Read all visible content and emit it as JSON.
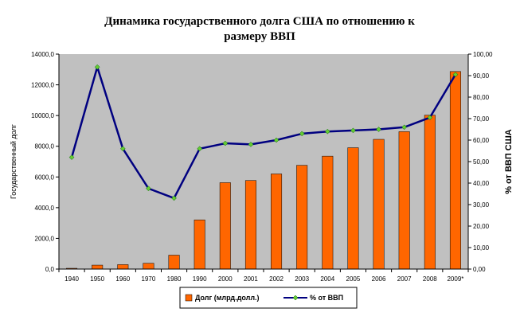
{
  "chart_data": {
    "type": "bar+line",
    "title_line1": "Динамика государственного долга США по отношению к",
    "title_line2": "размеру ВВП",
    "ylabel_left": "Государственный долг",
    "ylabel_right": "% от ВВП США",
    "categories": [
      "1940",
      "1950",
      "1960",
      "1970",
      "1980",
      "1990",
      "2000",
      "2001",
      "2002",
      "2003",
      "2004",
      "2005",
      "2006",
      "2007",
      "2008",
      "2009*"
    ],
    "series": [
      {
        "name": "Долг (млрд.долл.)",
        "type": "bar",
        "axis": "left",
        "color": "#FF6600",
        "values": [
          51,
          257,
          291,
          381,
          909,
          3206,
          5629,
          5770,
          6198,
          6760,
          7355,
          7905,
          8451,
          8951,
          10025,
          12867
        ]
      },
      {
        "name": "% от ВВП",
        "type": "line",
        "axis": "right",
        "color": "#000080",
        "marker_color": "#66CC33",
        "values": [
          52,
          94,
          56,
          37.5,
          33,
          56,
          58.5,
          58,
          60,
          63,
          64,
          64.5,
          65,
          66,
          70.5,
          90.5
        ]
      }
    ],
    "ylim_left": [
      0,
      14000
    ],
    "yticks_left": [
      "0,0",
      "2000,0",
      "4000,0",
      "6000,0",
      "8000,0",
      "10000,0",
      "12000,0",
      "14000,0"
    ],
    "ylim_right": [
      0,
      100
    ],
    "yticks_right": [
      "0,00",
      "10,00",
      "20,00",
      "30,00",
      "40,00",
      "50,00",
      "60,00",
      "70,00",
      "80,00",
      "90,00",
      "100,00"
    ],
    "grid": false,
    "plot_background": "#C0C0C0",
    "legend_position": "bottom",
    "legend": {
      "bar_label": "Долг (млрд.долл.)",
      "line_label": "% от ВВП"
    }
  }
}
